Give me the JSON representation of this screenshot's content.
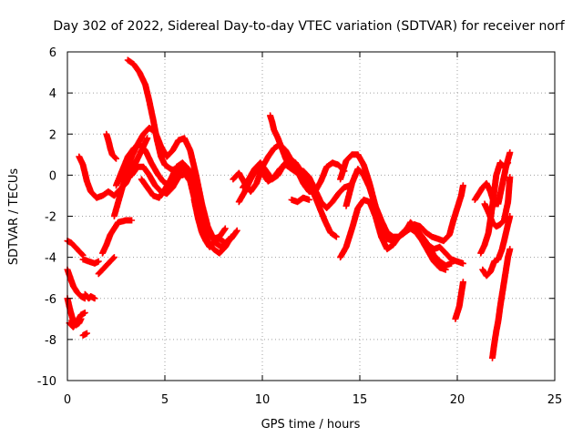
{
  "chart_data": {
    "type": "scatter",
    "title": "Day 302 of 2022, Sidereal Day-to-day VTEC variation (SDTVAR) for receiver norf",
    "xlabel": "GPS time / hours",
    "ylabel": "SDTVAR / TECUs",
    "xlim": [
      0,
      25
    ],
    "ylim": [
      -10,
      6
    ],
    "xticks": [
      0,
      5,
      10,
      15,
      20,
      25
    ],
    "yticks": [
      -10,
      -8,
      -6,
      -4,
      -2,
      0,
      2,
      4,
      6
    ],
    "xtick_labels": [
      "0",
      "5",
      "10",
      "15",
      "20",
      "25"
    ],
    "ytick_labels": [
      "-10",
      "-8",
      "-6",
      "-4",
      "-2",
      "0",
      "2",
      "4",
      "6"
    ],
    "grid": true,
    "marker": "+",
    "color": "#ff0000",
    "series": [
      {
        "name": "s1",
        "x": [
          0.0,
          0.2,
          0.4,
          0.6,
          0.8
        ],
        "y": [
          -3.2,
          -3.3,
          -3.5,
          -3.7,
          -3.9
        ]
      },
      {
        "name": "s2",
        "x": [
          0.0,
          0.15,
          0.3,
          0.5,
          0.7,
          0.9
        ],
        "y": [
          -4.6,
          -5.0,
          -5.4,
          -5.7,
          -5.9,
          -6.0
        ]
      },
      {
        "name": "s3",
        "x": [
          0.0,
          0.15,
          0.3,
          0.45,
          0.6,
          0.7
        ],
        "y": [
          -6.0,
          -6.6,
          -7.1,
          -7.3,
          -7.2,
          -7.0
        ]
      },
      {
        "name": "s4",
        "x": [
          0.1,
          0.3,
          0.5,
          0.7,
          0.9
        ],
        "y": [
          -7.2,
          -7.4,
          -7.1,
          -6.8,
          -6.7
        ]
      },
      {
        "name": "s5",
        "x": [
          0.9,
          1.0,
          1.1,
          1.2,
          1.4
        ],
        "y": [
          -5.8,
          -5.9,
          -6.0,
          -5.9,
          -6.0
        ]
      },
      {
        "name": "s6",
        "x": [
          0.8,
          1.0
        ],
        "y": [
          -7.8,
          -7.7
        ]
      },
      {
        "name": "s7",
        "x": [
          0.6,
          0.8,
          1.0,
          1.2,
          1.5,
          1.8,
          2.1,
          2.4,
          2.7,
          3.0,
          3.3,
          3.6,
          3.9,
          4.1
        ],
        "y": [
          0.9,
          0.5,
          -0.3,
          -0.8,
          -1.1,
          -1.0,
          -0.8,
          -1.0,
          -0.7,
          -0.4,
          0.2,
          0.8,
          1.4,
          1.8
        ]
      },
      {
        "name": "s8",
        "x": [
          0.8,
          1.1,
          1.4,
          1.6
        ],
        "y": [
          -4.1,
          -4.2,
          -4.3,
          -4.2
        ]
      },
      {
        "name": "s9",
        "x": [
          1.6,
          1.8,
          2.0,
          2.2,
          2.4
        ],
        "y": [
          -4.8,
          -4.6,
          -4.4,
          -4.2,
          -4.0
        ]
      },
      {
        "name": "s10",
        "x": [
          1.8,
          2.0,
          2.2,
          2.4,
          2.6,
          3.0,
          3.3
        ],
        "y": [
          -3.8,
          -3.4,
          -2.9,
          -2.6,
          -2.3,
          -2.2,
          -2.2
        ]
      },
      {
        "name": "s11",
        "x": [
          2.0,
          2.1,
          2.2,
          2.3,
          2.5
        ],
        "y": [
          2.0,
          1.7,
          1.3,
          1.0,
          0.8
        ]
      },
      {
        "name": "s12",
        "x": [
          2.4,
          2.7,
          3.0,
          3.3,
          3.6,
          3.9,
          4.2,
          4.5,
          4.8,
          5.1,
          5.4,
          5.7,
          6.0,
          6.3,
          6.6,
          6.9,
          7.2,
          7.5,
          7.8,
          8.1
        ],
        "y": [
          -2.0,
          -1.0,
          0.0,
          0.9,
          1.5,
          2.0,
          2.3,
          2.1,
          1.4,
          0.9,
          1.2,
          1.7,
          1.8,
          1.2,
          0.0,
          -1.4,
          -2.5,
          -3.1,
          -3.0,
          -2.6
        ]
      },
      {
        "name": "s13",
        "x": [
          3.1,
          3.4,
          3.7,
          4.0,
          4.2,
          4.4,
          4.6,
          4.8,
          5.0,
          5.3,
          5.6,
          5.9,
          6.2
        ],
        "y": [
          5.6,
          5.4,
          5.0,
          4.4,
          3.6,
          2.7,
          1.7,
          0.9,
          0.5,
          0.3,
          0.2,
          0.0,
          0.1
        ]
      },
      {
        "name": "s14",
        "x": [
          2.5,
          2.8,
          3.1,
          3.4,
          3.7,
          4.0,
          4.3,
          4.6,
          4.9,
          5.2,
          5.5,
          5.8,
          6.1,
          6.4,
          6.7,
          7.0,
          7.3,
          7.6,
          7.9,
          8.2
        ],
        "y": [
          -0.5,
          0.2,
          0.9,
          1.3,
          1.5,
          1.2,
          0.6,
          0.1,
          -0.3,
          -0.5,
          -0.2,
          0.3,
          0.4,
          -0.3,
          -1.3,
          -2.2,
          -2.8,
          -3.3,
          -3.5,
          -3.2
        ]
      },
      {
        "name": "s15",
        "x": [
          3.3,
          3.6,
          3.9,
          4.2,
          4.5,
          4.8,
          5.1,
          5.4,
          5.7,
          6.0,
          6.3,
          6.6,
          6.9,
          7.2,
          7.5,
          7.8,
          8.1,
          8.4
        ],
        "y": [
          0.0,
          0.4,
          0.4,
          0.0,
          -0.5,
          -0.8,
          -0.9,
          -0.6,
          -0.1,
          0.1,
          -0.3,
          -1.5,
          -2.5,
          -3.2,
          -3.6,
          -3.8,
          -3.5,
          -3.0
        ]
      },
      {
        "name": "s16",
        "x": [
          3.8,
          4.1,
          4.4,
          4.7,
          5.0,
          5.3,
          5.6,
          5.9,
          6.2,
          6.5
        ],
        "y": [
          -0.2,
          -0.6,
          -1.0,
          -1.1,
          -0.7,
          -0.2,
          0.4,
          0.6,
          0.3,
          -0.3
        ]
      },
      {
        "name": "s17",
        "x": [
          6.5,
          6.7,
          6.9,
          7.1,
          7.3,
          7.5,
          7.8,
          8.1,
          8.4,
          8.7
        ],
        "y": [
          -1.2,
          -2.1,
          -2.8,
          -3.2,
          -3.5,
          -3.3,
          -3.1,
          -3.3,
          -3.1,
          -2.7
        ]
      },
      {
        "name": "s18",
        "x": [
          8.5,
          8.8,
          9.1,
          9.4,
          9.7,
          10.0,
          10.3,
          10.6,
          10.9,
          11.2,
          11.5,
          11.8,
          12.1,
          12.4,
          12.7,
          13.0,
          13.3,
          13.6,
          13.9,
          14.2
        ],
        "y": [
          -0.2,
          0.1,
          -0.4,
          -0.8,
          -0.4,
          0.4,
          0.9,
          1.3,
          1.5,
          1.2,
          0.7,
          0.2,
          -0.4,
          -0.8,
          -0.8,
          -0.3,
          0.4,
          0.6,
          0.5,
          0.2
        ]
      },
      {
        "name": "s19",
        "x": [
          8.8,
          9.1,
          9.4,
          9.7,
          10.0,
          10.3,
          10.6,
          10.9,
          11.2,
          11.5,
          11.8,
          12.1,
          12.4,
          12.7,
          13.0,
          13.3,
          13.6,
          13.9,
          14.2,
          14.5
        ],
        "y": [
          -1.3,
          -0.8,
          -0.2,
          0.3,
          0.1,
          -0.3,
          -0.1,
          0.3,
          0.5,
          0.3,
          0.1,
          0.2,
          -0.1,
          -0.7,
          -1.3,
          -1.6,
          -1.3,
          -0.9,
          -0.6,
          -0.5
        ]
      },
      {
        "name": "s20",
        "x": [
          9.0,
          9.3,
          9.6,
          9.9,
          10.2,
          10.5,
          10.8,
          11.1,
          11.4,
          11.7,
          12.0,
          12.3,
          12.6,
          12.9,
          13.2,
          13.5,
          13.8
        ],
        "y": [
          -0.6,
          -0.2,
          0.3,
          0.6,
          0.2,
          -0.2,
          0.0,
          0.5,
          0.8,
          0.6,
          0.2,
          -0.2,
          -0.8,
          -1.5,
          -2.2,
          -2.8,
          -3.0
        ]
      },
      {
        "name": "s21",
        "x": [
          10.4,
          10.5,
          10.6,
          10.8,
          11.0,
          11.2,
          11.4
        ],
        "y": [
          2.9,
          2.6,
          2.2,
          1.8,
          1.3,
          0.8,
          0.4
        ]
      },
      {
        "name": "s22",
        "x": [
          11.5,
          11.8,
          12.1,
          12.4
        ],
        "y": [
          -1.2,
          -1.3,
          -1.1,
          -1.2
        ]
      },
      {
        "name": "s23",
        "x": [
          14.0,
          14.3,
          14.6,
          14.9,
          15.2,
          15.5,
          15.8,
          16.1,
          16.4,
          16.7,
          17.0,
          17.3,
          17.6,
          17.9,
          18.2,
          18.5,
          18.8,
          19.1,
          19.4,
          19.7
        ],
        "y": [
          -0.2,
          0.7,
          1.0,
          1.0,
          0.5,
          -0.4,
          -1.5,
          -2.5,
          -3.1,
          -3.2,
          -3.0,
          -2.7,
          -2.6,
          -2.7,
          -3.0,
          -3.4,
          -3.9,
          -4.2,
          -4.4,
          -4.3
        ]
      },
      {
        "name": "s24",
        "x": [
          14.0,
          14.3,
          14.6,
          14.9,
          15.2,
          15.5,
          15.8,
          16.1,
          16.4,
          16.7,
          17.0,
          17.3,
          17.6,
          17.9,
          18.2,
          18.5,
          18.8,
          19.1,
          19.4
        ],
        "y": [
          -4.0,
          -3.5,
          -2.6,
          -1.6,
          -1.2,
          -1.3,
          -2.0,
          -3.0,
          -3.6,
          -3.4,
          -3.0,
          -2.8,
          -2.6,
          -2.8,
          -3.2,
          -3.7,
          -4.2,
          -4.5,
          -4.6
        ]
      },
      {
        "name": "s25",
        "x": [
          14.3,
          14.6,
          14.9,
          15.2,
          15.5,
          15.8,
          16.1,
          16.4,
          16.7,
          17.0,
          17.3,
          17.6,
          17.9,
          18.2,
          18.5,
          18.8,
          19.1,
          19.4,
          19.7,
          20.0,
          20.3
        ],
        "y": [
          -1.5,
          -0.4,
          0.3,
          0.0,
          -0.6,
          -1.5,
          -2.2,
          -2.8,
          -3.0,
          -3.0,
          -2.8,
          -2.3,
          -2.6,
          -3.0,
          -3.4,
          -3.6,
          -3.5,
          -3.8,
          -4.1,
          -4.2,
          -4.3
        ]
      },
      {
        "name": "s26",
        "x": [
          17.5,
          17.8,
          18.1,
          18.4,
          18.7,
          19.0,
          19.3,
          19.6,
          19.8,
          20.0,
          20.2,
          20.3
        ],
        "y": [
          -2.6,
          -2.4,
          -2.5,
          -2.8,
          -3.0,
          -3.1,
          -3.2,
          -2.9,
          -2.2,
          -1.6,
          -1.0,
          -0.5
        ]
      },
      {
        "name": "s27",
        "x": [
          19.9,
          20.0,
          20.1,
          20.2,
          20.3
        ],
        "y": [
          -7.0,
          -6.7,
          -6.4,
          -5.8,
          -5.2
        ]
      },
      {
        "name": "s28",
        "x": [
          20.9,
          21.1,
          21.3,
          21.5,
          21.7,
          21.9,
          22.1,
          22.3,
          22.5,
          22.7
        ],
        "y": [
          -1.2,
          -0.9,
          -0.6,
          -0.4,
          -0.8,
          -1.4,
          -1.4,
          -0.5,
          0.4,
          1.1
        ]
      },
      {
        "name": "s29",
        "x": [
          21.2,
          21.4,
          21.6,
          21.8,
          22.0,
          22.2,
          22.4,
          22.6
        ],
        "y": [
          -3.8,
          -3.4,
          -2.8,
          -1.5,
          0.0,
          0.6,
          0.4,
          0.6
        ]
      },
      {
        "name": "s30",
        "x": [
          21.4,
          21.6,
          21.8,
          22.0,
          22.2,
          22.4,
          22.6,
          22.7
        ],
        "y": [
          -1.4,
          -1.8,
          -2.3,
          -2.5,
          -2.4,
          -2.2,
          -1.3,
          -0.1
        ]
      },
      {
        "name": "s31",
        "x": [
          21.3,
          21.5,
          21.7,
          21.9,
          22.1,
          22.3,
          22.5,
          22.7
        ],
        "y": [
          -4.6,
          -4.9,
          -4.7,
          -4.2,
          -4.1,
          -3.6,
          -2.8,
          -2.0
        ]
      },
      {
        "name": "s32",
        "x": [
          21.8,
          21.9,
          22.0,
          22.1,
          22.2,
          22.3,
          22.4,
          22.5,
          22.6,
          22.7
        ],
        "y": [
          -8.9,
          -8.2,
          -7.6,
          -7.1,
          -6.4,
          -5.8,
          -5.2,
          -4.6,
          -4.0,
          -3.6
        ]
      }
    ]
  }
}
